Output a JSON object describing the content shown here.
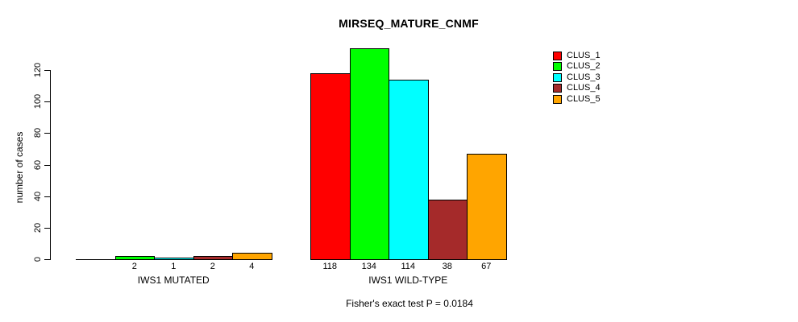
{
  "title": "MIRSEQ_MATURE_CNMF",
  "y_axis": {
    "label": "number of cases",
    "ticks": [
      0,
      20,
      40,
      60,
      80,
      100,
      120
    ]
  },
  "caption": "Fisher's exact test P = 0.0184",
  "legend": {
    "items": [
      {
        "label": "CLUS_1",
        "color": "#ff0000"
      },
      {
        "label": "CLUS_2",
        "color": "#00ff00"
      },
      {
        "label": "CLUS_3",
        "color": "#00ffff"
      },
      {
        "label": "CLUS_4",
        "color": "#a52a2a"
      },
      {
        "label": "CLUS_5",
        "color": "#ffa500"
      }
    ]
  },
  "chart_data": {
    "type": "bar",
    "title": "MIRSEQ_MATURE_CNMF",
    "ylabel": "number of cases",
    "ylim": [
      0,
      120
    ],
    "yticks": [
      0,
      20,
      40,
      60,
      80,
      100,
      120
    ],
    "grid": false,
    "legend_position": "top-right",
    "series_names": [
      "CLUS_1",
      "CLUS_2",
      "CLUS_3",
      "CLUS_4",
      "CLUS_5"
    ],
    "series_colors": [
      "#ff0000",
      "#00ff00",
      "#00ffff",
      "#a52a2a",
      "#ffa500"
    ],
    "groups": [
      {
        "label": "IWS1 MUTATED",
        "values": [
          0,
          2,
          1,
          2,
          4
        ],
        "value_labels": [
          "",
          "2",
          "1",
          "2",
          "4"
        ]
      },
      {
        "label": "IWS1 WILD-TYPE",
        "values": [
          118,
          134,
          114,
          38,
          67
        ],
        "value_labels": [
          "118",
          "134",
          "114",
          "38",
          "67"
        ]
      }
    ],
    "annotation": "Fisher's exact test P = 0.0184"
  }
}
